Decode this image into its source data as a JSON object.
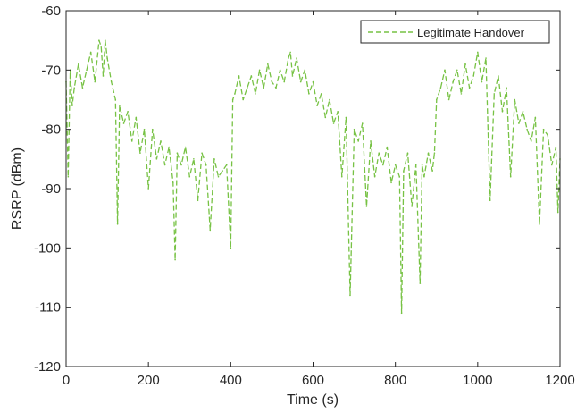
{
  "chart_data": {
    "type": "line",
    "title": "",
    "xlabel": "Time (s)",
    "ylabel": "RSRP (dBm)",
    "xlim": [
      0,
      1200
    ],
    "ylim": [
      -120,
      -60
    ],
    "xticks": [
      0,
      200,
      400,
      600,
      800,
      1000,
      1200
    ],
    "yticks": [
      -60,
      -70,
      -80,
      -90,
      -100,
      -110,
      -120
    ],
    "grid": false,
    "legend_position": "top-right",
    "series": [
      {
        "name": "Legitimate Handover",
        "color": "#77c244",
        "line_style": "dashed",
        "x": [
          0,
          5,
          10,
          15,
          20,
          30,
          40,
          50,
          60,
          70,
          80,
          85,
          90,
          95,
          100,
          110,
          120,
          125,
          130,
          140,
          150,
          160,
          170,
          180,
          190,
          200,
          210,
          220,
          230,
          240,
          250,
          260,
          265,
          270,
          280,
          290,
          300,
          310,
          320,
          330,
          340,
          350,
          360,
          370,
          380,
          390,
          400,
          405,
          410,
          420,
          430,
          440,
          450,
          460,
          470,
          480,
          490,
          500,
          510,
          520,
          530,
          540,
          545,
          550,
          560,
          570,
          580,
          590,
          600,
          610,
          620,
          630,
          640,
          650,
          660,
          670,
          680,
          690,
          700,
          710,
          720,
          730,
          740,
          750,
          760,
          770,
          780,
          790,
          800,
          810,
          815,
          820,
          830,
          840,
          850,
          860,
          865,
          870,
          880,
          890,
          895,
          900,
          910,
          920,
          930,
          940,
          950,
          960,
          970,
          980,
          990,
          1000,
          1010,
          1020,
          1030,
          1040,
          1050,
          1060,
          1070,
          1080,
          1090,
          1100,
          1110,
          1120,
          1130,
          1140,
          1150,
          1160,
          1170,
          1180,
          1190,
          1195,
          1200
        ],
        "values": [
          -72,
          -88,
          -70,
          -76,
          -73,
          -69,
          -73,
          -70,
          -67,
          -72,
          -65,
          -66,
          -71,
          -65,
          -68,
          -72,
          -75,
          -96,
          -76,
          -79,
          -77,
          -82,
          -78,
          -84,
          -80,
          -90,
          -80,
          -85,
          -82,
          -86,
          -83,
          -89,
          -102,
          -84,
          -86,
          -83,
          -88,
          -85,
          -92,
          -84,
          -86,
          -97,
          -85,
          -88,
          -87,
          -86,
          -100,
          -75,
          -74,
          -71,
          -75,
          -73,
          -71,
          -74,
          -70,
          -73,
          -69,
          -72,
          -73,
          -70,
          -72,
          -68,
          -67,
          -71,
          -68,
          -72,
          -70,
          -74,
          -72,
          -76,
          -74,
          -78,
          -75,
          -79,
          -77,
          -88,
          -78,
          -108,
          -80,
          -82,
          -79,
          -93,
          -82,
          -88,
          -84,
          -86,
          -83,
          -89,
          -86,
          -88,
          -111,
          -87,
          -84,
          -93,
          -86,
          -106,
          -86,
          -88,
          -84,
          -87,
          -84,
          -75,
          -73,
          -70,
          -75,
          -72,
          -70,
          -74,
          -69,
          -73,
          -71,
          -67,
          -72,
          -68,
          -92,
          -74,
          -71,
          -77,
          -73,
          -88,
          -75,
          -79,
          -77,
          -80,
          -82,
          -78,
          -96,
          -80,
          -81,
          -86,
          -83,
          -94,
          -85
        ]
      }
    ]
  }
}
